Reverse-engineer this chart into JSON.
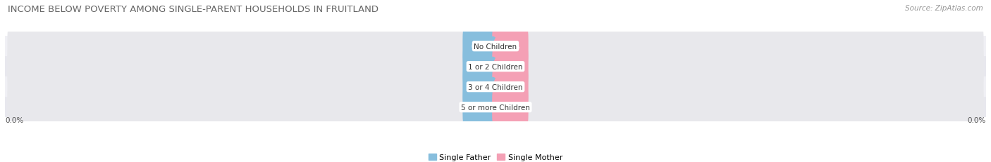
{
  "title": "INCOME BELOW POVERTY AMONG SINGLE-PARENT HOUSEHOLDS IN FRUITLAND",
  "source_text": "Source: ZipAtlas.com",
  "categories": [
    "No Children",
    "1 or 2 Children",
    "3 or 4 Children",
    "5 or more Children"
  ],
  "single_father_values": [
    0.0,
    0.0,
    0.0,
    0.0
  ],
  "single_mother_values": [
    0.0,
    0.0,
    0.0,
    0.0
  ],
  "father_color": "#87BEDD",
  "mother_color": "#F4A0B5",
  "bar_bg_color": "#E8E8EC",
  "row_bg_even": "#F0F0F5",
  "row_bg_odd": "#E8E8EE",
  "title_fontsize": 9.5,
  "source_fontsize": 7.5,
  "label_fontsize": 7.5,
  "value_fontsize": 7,
  "legend_fontsize": 8,
  "background_color": "#FFFFFF",
  "x_tick_label_left": "0.0%",
  "x_tick_label_right": "0.0%"
}
